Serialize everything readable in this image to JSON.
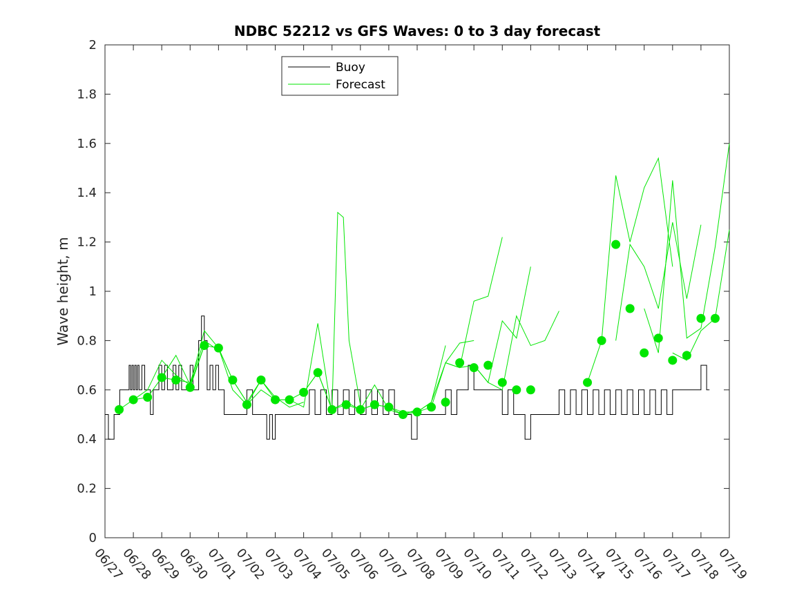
{
  "chart_data": {
    "type": "line",
    "title": "NDBC 52212 vs GFS Waves: 0 to 3 day forecast",
    "xlabel": "",
    "ylabel": "Wave height, m",
    "xlim": [
      "06/27",
      "07/19"
    ],
    "ylim": [
      0,
      2
    ],
    "yticks": [
      "0",
      "0.2",
      "0.4",
      "0.6",
      "0.8",
      "1",
      "1.2",
      "1.4",
      "1.6",
      "1.8",
      "2"
    ],
    "xticks": [
      "06/27",
      "06/28",
      "06/29",
      "06/30",
      "07/01",
      "07/02",
      "07/03",
      "07/04",
      "07/05",
      "07/06",
      "07/07",
      "07/08",
      "07/09",
      "07/10",
      "07/11",
      "07/12",
      "07/13",
      "07/14",
      "07/15",
      "07/16",
      "07/17",
      "07/18",
      "07/19"
    ],
    "legend": {
      "location": "top-left-center",
      "entries": [
        "Buoy",
        "Forecast"
      ]
    },
    "colors": {
      "buoy": "#000000",
      "forecast": "#00e600",
      "markers": "#00e600"
    },
    "buoy": {
      "name": "Buoy",
      "x_days": [
        0,
        0.1,
        0.12,
        0.3,
        0.32,
        0.5,
        0.52,
        0.8,
        0.85,
        0.9,
        0.95,
        1.0,
        1.05,
        1.1,
        1.15,
        1.2,
        1.3,
        1.4,
        1.5,
        1.6,
        1.7,
        1.8,
        1.9,
        2.0,
        2.1,
        2.2,
        2.3,
        2.4,
        2.5,
        2.6,
        2.7,
        2.8,
        2.9,
        3.0,
        3.1,
        3.2,
        3.3,
        3.4,
        3.5,
        3.6,
        3.7,
        3.8,
        3.9,
        4.0,
        4.2,
        4.4,
        4.6,
        4.8,
        5.0,
        5.2,
        5.4,
        5.6,
        5.7,
        5.8,
        5.9,
        6.0,
        6.2,
        6.4,
        6.6,
        6.8,
        7.0,
        7.2,
        7.4,
        7.6,
        7.8,
        8.0,
        8.2,
        8.4,
        8.6,
        8.8,
        9.0,
        9.2,
        9.4,
        9.6,
        9.8,
        10.0,
        10.2,
        10.4,
        10.6,
        10.8,
        11.0,
        11.2,
        11.4,
        11.6,
        11.8,
        12.0,
        12.2,
        12.4,
        12.6,
        12.8,
        13.0,
        13.2,
        13.4,
        13.6,
        13.8,
        14.0,
        14.2,
        14.4,
        14.6,
        14.8,
        15.0,
        15.2,
        15.4,
        15.6,
        15.8,
        16.0,
        16.2,
        16.4,
        16.6,
        16.8,
        17.0,
        17.2,
        17.4,
        17.6,
        17.8,
        18.0,
        18.2,
        18.4,
        18.6,
        18.8,
        19.0,
        19.2,
        19.4,
        19.6,
        19.8,
        20.0,
        20.2,
        20.4,
        20.6,
        20.8,
        21.0,
        21.2,
        21.3
      ],
      "y": [
        0.5,
        0.5,
        0.4,
        0.4,
        0.5,
        0.5,
        0.6,
        0.6,
        0.7,
        0.6,
        0.7,
        0.6,
        0.7,
        0.6,
        0.7,
        0.6,
        0.7,
        0.6,
        0.6,
        0.5,
        0.6,
        0.6,
        0.7,
        0.6,
        0.7,
        0.6,
        0.6,
        0.7,
        0.6,
        0.7,
        0.6,
        0.6,
        0.6,
        0.7,
        0.6,
        0.6,
        0.8,
        0.9,
        0.8,
        0.6,
        0.7,
        0.6,
        0.7,
        0.6,
        0.5,
        0.5,
        0.5,
        0.5,
        0.6,
        0.5,
        0.5,
        0.5,
        0.4,
        0.5,
        0.4,
        0.5,
        0.5,
        0.5,
        0.5,
        0.5,
        0.5,
        0.6,
        0.5,
        0.6,
        0.5,
        0.6,
        0.5,
        0.6,
        0.5,
        0.6,
        0.5,
        0.6,
        0.5,
        0.6,
        0.5,
        0.6,
        0.5,
        0.5,
        0.5,
        0.4,
        0.5,
        0.5,
        0.5,
        0.5,
        0.5,
        0.6,
        0.5,
        0.6,
        0.6,
        0.7,
        0.6,
        0.6,
        0.6,
        0.6,
        0.6,
        0.5,
        0.6,
        0.5,
        0.5,
        0.4,
        0.5,
        0.5,
        0.5,
        0.5,
        0.5,
        0.6,
        0.5,
        0.6,
        0.5,
        0.6,
        0.5,
        0.6,
        0.5,
        0.6,
        0.5,
        0.6,
        0.5,
        0.6,
        0.5,
        0.6,
        0.5,
        0.6,
        0.5,
        0.6,
        0.5,
        0.6,
        0.6,
        0.6,
        0.6,
        0.6,
        0.7,
        0.6,
        0.6
      ]
    },
    "forecast_runs": [
      {
        "x_days": [
          0.5,
          1,
          1.5,
          2,
          2.5,
          3,
          3.5
        ],
        "y": [
          0.52,
          0.56,
          0.6,
          0.72,
          0.66,
          0.62,
          0.78
        ]
      },
      {
        "x_days": [
          1,
          1.5,
          2,
          2.5,
          3,
          3.5,
          4
        ],
        "y": [
          0.56,
          0.57,
          0.65,
          0.64,
          0.63,
          0.8,
          0.76
        ]
      },
      {
        "x_days": [
          2,
          2.5,
          3,
          3.5,
          4,
          4.5,
          5
        ],
        "y": [
          0.65,
          0.74,
          0.62,
          0.84,
          0.77,
          0.64,
          0.55
        ]
      },
      {
        "x_days": [
          3,
          3.5,
          4,
          4.5,
          5,
          5.5,
          6
        ],
        "y": [
          0.61,
          0.78,
          0.77,
          0.6,
          0.54,
          0.6,
          0.56
        ]
      },
      {
        "x_days": [
          4,
          4.5,
          5,
          5.5,
          6,
          6.5,
          7
        ],
        "y": [
          0.77,
          0.64,
          0.55,
          0.64,
          0.57,
          0.53,
          0.55
        ]
      },
      {
        "x_days": [
          5,
          5.5,
          6,
          6.5,
          7,
          7.5,
          8
        ],
        "y": [
          0.54,
          0.64,
          0.56,
          0.56,
          0.53,
          0.87,
          0.5
        ]
      },
      {
        "x_days": [
          6,
          6.5,
          7,
          7.5,
          8,
          8.2,
          8.4,
          8.6,
          9
        ],
        "y": [
          0.56,
          0.56,
          0.59,
          0.67,
          0.52,
          1.32,
          1.3,
          0.8,
          0.54
        ]
      },
      {
        "x_days": [
          7,
          7.5,
          8,
          8.5,
          9,
          9.5,
          10
        ],
        "y": [
          0.59,
          0.67,
          0.52,
          0.55,
          0.52,
          0.54,
          0.53
        ]
      },
      {
        "x_days": [
          8,
          8.5,
          9,
          9.5,
          10,
          10.5,
          11
        ],
        "y": [
          0.52,
          0.54,
          0.52,
          0.62,
          0.52,
          0.5,
          0.52
        ]
      },
      {
        "x_days": [
          9,
          9.5,
          10,
          10.5,
          11,
          11.5,
          12
        ],
        "y": [
          0.52,
          0.54,
          0.53,
          0.5,
          0.51,
          0.55,
          0.78
        ]
      },
      {
        "x_days": [
          10,
          10.5,
          11,
          11.5,
          12,
          12.5,
          13
        ],
        "y": [
          0.53,
          0.51,
          0.51,
          0.53,
          0.71,
          0.79,
          0.8
        ]
      },
      {
        "x_days": [
          11,
          11.5,
          12,
          12.5,
          13,
          13.5,
          14
        ],
        "y": [
          0.51,
          0.55,
          0.71,
          0.69,
          0.96,
          0.98,
          1.22
        ]
      },
      {
        "x_days": [
          12,
          12.5,
          13,
          13.5,
          14,
          14.5,
          15
        ],
        "y": [
          0.71,
          0.69,
          0.7,
          0.63,
          0.88,
          0.81,
          1.1
        ]
      },
      {
        "x_days": [
          13,
          13.5,
          14,
          14.5,
          15,
          15.5,
          16
        ],
        "y": [
          0.7,
          0.63,
          0.6,
          0.9,
          0.78,
          0.8,
          0.92
        ]
      },
      {
        "x_days": [
          17,
          17.5,
          18,
          18.5,
          19,
          19.5,
          20
        ],
        "y": [
          0.63,
          0.8,
          1.47,
          1.2,
          1.42,
          1.54,
          1.1
        ]
      },
      {
        "x_days": [
          18,
          18.5,
          19,
          19.5,
          20,
          20.5,
          21
        ],
        "y": [
          0.8,
          1.19,
          1.1,
          0.93,
          1.28,
          0.97,
          1.27
        ]
      },
      {
        "x_days": [
          19,
          19.5,
          20,
          20.5,
          21,
          21.5,
          22
        ],
        "y": [
          0.93,
          0.75,
          1.45,
          0.81,
          0.85,
          1.18,
          1.6
        ]
      },
      {
        "x_days": [
          20,
          20.5,
          21,
          21.5,
          22
        ],
        "y": [
          0.75,
          0.72,
          0.84,
          0.89,
          1.25
        ]
      }
    ],
    "forecast_markers": {
      "x_days": [
        0.5,
        1,
        1.5,
        2,
        2.5,
        3,
        3.5,
        4,
        4.5,
        5,
        5.5,
        6,
        6.5,
        7,
        7.5,
        8,
        8.5,
        9,
        9.5,
        10,
        10.5,
        11,
        11.5,
        12,
        12.5,
        13,
        13.5,
        14,
        14.5,
        15,
        17,
        17.5,
        18,
        18.5,
        19,
        19.5,
        20,
        20.5,
        21,
        21.5
      ],
      "y": [
        0.52,
        0.56,
        0.57,
        0.65,
        0.64,
        0.61,
        0.78,
        0.77,
        0.64,
        0.54,
        0.64,
        0.56,
        0.56,
        0.59,
        0.67,
        0.52,
        0.54,
        0.52,
        0.54,
        0.53,
        0.5,
        0.51,
        0.53,
        0.55,
        0.71,
        0.69,
        0.7,
        0.63,
        0.6,
        0.6,
        0.63,
        0.8,
        1.19,
        0.93,
        0.75,
        0.81,
        0.72,
        0.74,
        0.89,
        0.89
      ]
    }
  }
}
